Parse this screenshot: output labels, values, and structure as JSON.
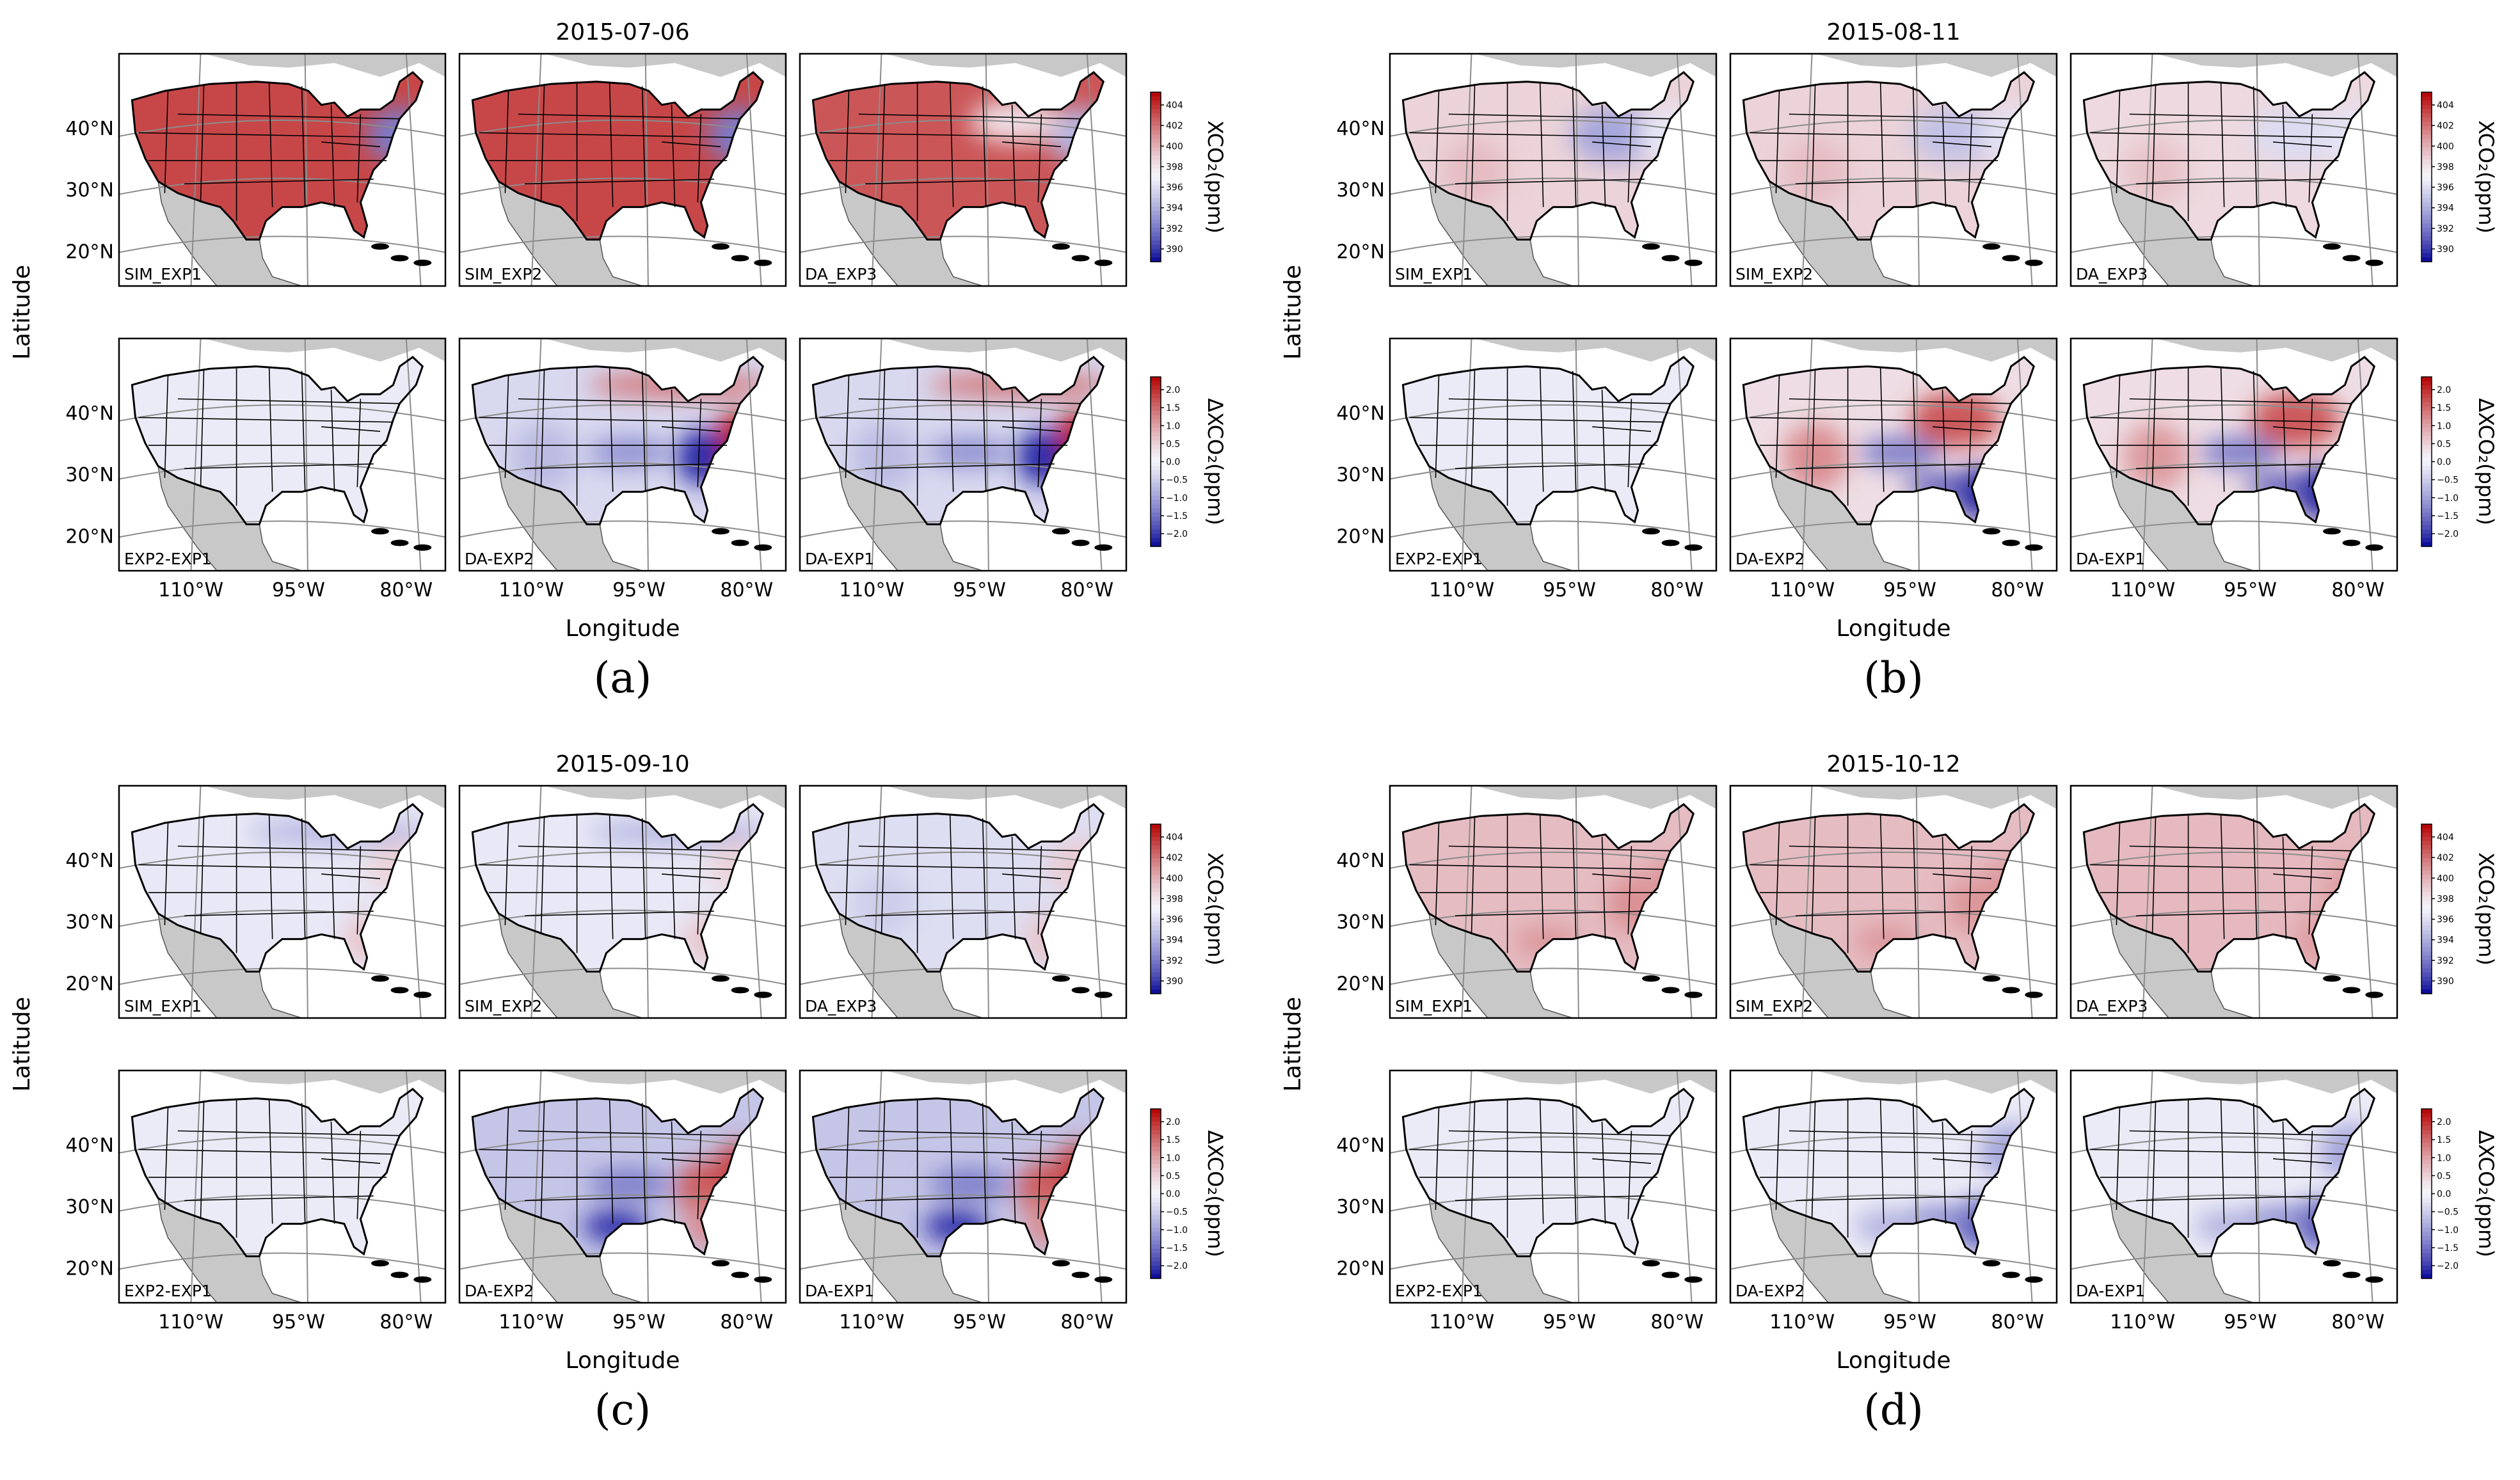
{
  "figure": {
    "x_label": "Longitude",
    "y_label": "Latitude",
    "abs_colorbar": {
      "label": "XCO₂(ppm)",
      "ticks": [
        "390",
        "392",
        "394",
        "396",
        "398",
        "400",
        "402",
        "404"
      ],
      "vmin": 390,
      "vmax": 405,
      "low_color": "#000096",
      "mid_color": "#f4f4fb",
      "high_color": "#b40000"
    },
    "diff_colorbar": {
      "label": "ΔXCO₂(ppm)",
      "ticks": [
        "−2.0",
        "−1.5",
        "−1.0",
        "−0.5",
        "0.0",
        "0.5",
        "1.0",
        "1.5",
        "2.0"
      ],
      "vmin": -2.0,
      "vmax": 2.0
    },
    "lat_ticks": [
      "20°N",
      "30°N",
      "40°N"
    ],
    "colors": {
      "land": "#ffffff",
      "ocean": "#ffffff",
      "nodata": "#c8c8c8",
      "border": "#000000",
      "grid": "#8c8c8c"
    }
  },
  "chart_data": [
    {
      "type": "heatmap",
      "panel_label": "(a)",
      "title": "2015-07-06",
      "lon_ticks": [
        "110°W",
        "95°W",
        "80°W"
      ],
      "rows": [
        {
          "colorbar": "abs",
          "maps": [
            {
              "label": "SIM_EXP1",
              "base": 403.2,
              "blobs": [
                {
                  "region": "northeast",
                  "value": 393.0
                }
              ]
            },
            {
              "label": "SIM_EXP2",
              "base": 403.2,
              "blobs": [
                {
                  "region": "northeast",
                  "value": 393.0
                }
              ]
            },
            {
              "label": "DA_EXP3",
              "base": 402.8,
              "blobs": [
                {
                  "region": "northeast",
                  "value": 395.0
                },
                {
                  "region": "north-central",
                  "value": 398.5
                }
              ]
            }
          ]
        },
        {
          "colorbar": "diff",
          "maps": [
            {
              "label": "EXP2-EXP1",
              "base": -0.1,
              "blobs": []
            },
            {
              "label": "DA-EXP2",
              "base": -0.3,
              "blobs": [
                {
                  "region": "east-coast",
                  "value": 1.8
                },
                {
                  "region": "north-border",
                  "value": 1.2
                },
                {
                  "region": "ohio-valley",
                  "value": -1.8
                },
                {
                  "region": "central-plains",
                  "value": -1.0
                },
                {
                  "region": "west",
                  "value": -0.6
                }
              ]
            },
            {
              "label": "DA-EXP1",
              "base": -0.3,
              "blobs": [
                {
                  "region": "east-coast",
                  "value": 1.8
                },
                {
                  "region": "north-border",
                  "value": 1.2
                },
                {
                  "region": "ohio-valley",
                  "value": -1.8
                },
                {
                  "region": "central-plains",
                  "value": -1.0
                },
                {
                  "region": "west",
                  "value": -0.6
                }
              ]
            }
          ]
        }
      ]
    },
    {
      "type": "heatmap",
      "panel_label": "(b)",
      "title": "2015-08-11",
      "lon_ticks": [
        "110°W",
        "95°W",
        "80°W"
      ],
      "rows": [
        {
          "colorbar": "abs",
          "maps": [
            {
              "label": "SIM_EXP1",
              "base": 399.0,
              "blobs": [
                {
                  "region": "upper-midwest",
                  "value": 394.5
                },
                {
                  "region": "west",
                  "value": 399.8
                },
                {
                  "region": "northeast",
                  "value": 397.0
                }
              ]
            },
            {
              "label": "SIM_EXP2",
              "base": 399.0,
              "blobs": [
                {
                  "region": "upper-midwest",
                  "value": 395.5
                },
                {
                  "region": "west",
                  "value": 399.8
                },
                {
                  "region": "northeast",
                  "value": 396.8
                }
              ]
            },
            {
              "label": "DA_EXP3",
              "base": 398.8,
              "blobs": [
                {
                  "region": "upper-midwest",
                  "value": 396.5
                },
                {
                  "region": "northeast",
                  "value": 396.8
                },
                {
                  "region": "west",
                  "value": 399.6
                }
              ]
            }
          ]
        },
        {
          "colorbar": "diff",
          "maps": [
            {
              "label": "EXP2-EXP1",
              "base": -0.1,
              "blobs": []
            },
            {
              "label": "DA-EXP2",
              "base": 0.3,
              "blobs": [
                {
                  "region": "upper-midwest",
                  "value": 1.4
                },
                {
                  "region": "west",
                  "value": 1.0
                },
                {
                  "region": "southeast",
                  "value": -2.0
                },
                {
                  "region": "central-plains",
                  "value": -1.2
                },
                {
                  "region": "gulf-coast",
                  "value": -1.6
                }
              ]
            },
            {
              "label": "DA-EXP1",
              "base": 0.3,
              "blobs": [
                {
                  "region": "upper-midwest",
                  "value": 1.4
                },
                {
                  "region": "west",
                  "value": 0.9
                },
                {
                  "region": "southeast",
                  "value": -2.0
                },
                {
                  "region": "central-plains",
                  "value": -1.2
                },
                {
                  "region": "gulf-coast",
                  "value": -1.6
                }
              ]
            }
          ]
        }
      ]
    },
    {
      "type": "heatmap",
      "panel_label": "(c)",
      "title": "2015-09-10",
      "lon_ticks": [
        "110°W",
        "95°W",
        "80°W"
      ],
      "rows": [
        {
          "colorbar": "abs",
          "maps": [
            {
              "label": "SIM_EXP1",
              "base": 397.0,
              "blobs": [
                {
                  "region": "north-border",
                  "value": 395.0
                },
                {
                  "region": "southeast",
                  "value": 399.5
                },
                {
                  "region": "northeast",
                  "value": 399.0
                }
              ]
            },
            {
              "label": "SIM_EXP2",
              "base": 397.0,
              "blobs": [
                {
                  "region": "north-border",
                  "value": 395.0
                },
                {
                  "region": "southeast",
                  "value": 399.5
                },
                {
                  "region": "northeast",
                  "value": 399.0
                }
              ]
            },
            {
              "label": "DA_EXP3",
              "base": 396.6,
              "blobs": [
                {
                  "region": "west",
                  "value": 396.0
                },
                {
                  "region": "southeast",
                  "value": 399.5
                },
                {
                  "region": "northeast",
                  "value": 399.3
                }
              ]
            }
          ]
        },
        {
          "colorbar": "diff",
          "maps": [
            {
              "label": "EXP2-EXP1",
              "base": -0.1,
              "blobs": []
            },
            {
              "label": "DA-EXP2",
              "base": -0.5,
              "blobs": [
                {
                  "region": "east-coast",
                  "value": 1.6
                },
                {
                  "region": "ohio-valley",
                  "value": 1.4
                },
                {
                  "region": "texas",
                  "value": -1.8
                },
                {
                  "region": "central-plains",
                  "value": -1.2
                },
                {
                  "region": "southeast",
                  "value": 1.0
                }
              ]
            },
            {
              "label": "DA-EXP1",
              "base": -0.5,
              "blobs": [
                {
                  "region": "east-coast",
                  "value": 1.6
                },
                {
                  "region": "ohio-valley",
                  "value": 1.4
                },
                {
                  "region": "texas",
                  "value": -1.8
                },
                {
                  "region": "central-plains",
                  "value": -1.2
                },
                {
                  "region": "southeast",
                  "value": 1.0
                }
              ]
            }
          ]
        }
      ]
    },
    {
      "type": "heatmap",
      "panel_label": "(d)",
      "title": "2015-10-12",
      "lon_ticks": [
        "110°W",
        "95°W",
        "80°W"
      ],
      "rows": [
        {
          "colorbar": "abs",
          "maps": [
            {
              "label": "SIM_EXP1",
              "base": 399.8,
              "blobs": [
                {
                  "region": "ohio-valley",
                  "value": 401.2
                },
                {
                  "region": "texas",
                  "value": 401.0
                },
                {
                  "region": "east-coast",
                  "value": 401.0
                }
              ]
            },
            {
              "label": "SIM_EXP2",
              "base": 399.8,
              "blobs": [
                {
                  "region": "ohio-valley",
                  "value": 401.0
                },
                {
                  "region": "texas",
                  "value": 401.0
                },
                {
                  "region": "east-coast",
                  "value": 401.0
                }
              ]
            },
            {
              "label": "DA_EXP3",
              "base": 399.9,
              "blobs": [
                {
                  "region": "southeast",
                  "value": 400.8
                },
                {
                  "region": "east-coast",
                  "value": 400.8
                }
              ]
            }
          ]
        },
        {
          "colorbar": "diff",
          "maps": [
            {
              "label": "EXP2-EXP1",
              "base": -0.1,
              "blobs": []
            },
            {
              "label": "DA-EXP2",
              "base": -0.1,
              "blobs": [
                {
                  "region": "southeast",
                  "value": -1.6
                },
                {
                  "region": "northeast",
                  "value": -0.8
                },
                {
                  "region": "texas",
                  "value": -0.7
                },
                {
                  "region": "gulf-coast",
                  "value": -1.2
                }
              ]
            },
            {
              "label": "DA-EXP1",
              "base": -0.1,
              "blobs": [
                {
                  "region": "southeast",
                  "value": -1.6
                },
                {
                  "region": "northeast",
                  "value": -0.8
                },
                {
                  "region": "texas",
                  "value": -0.7
                },
                {
                  "region": "gulf-coast",
                  "value": -1.2
                }
              ]
            }
          ]
        }
      ]
    }
  ]
}
